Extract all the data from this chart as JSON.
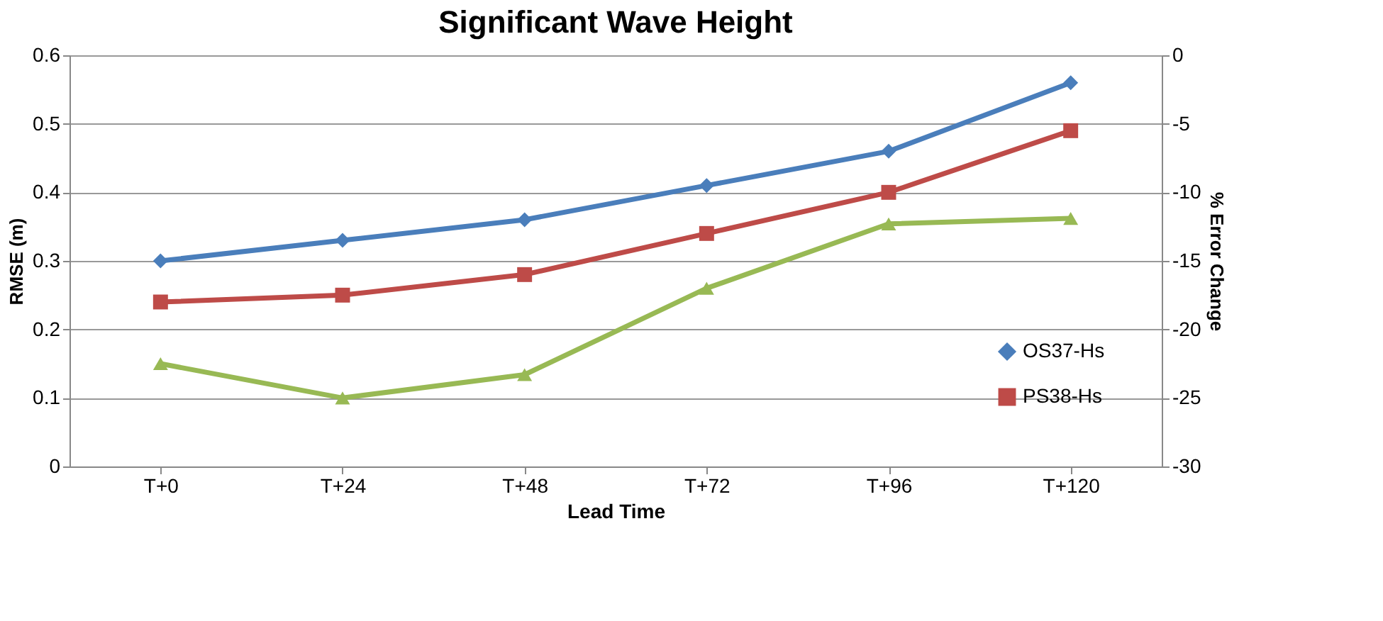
{
  "chart_data": {
    "type": "line",
    "title": "Significant Wave Height",
    "xlabel": "Lead Time",
    "ylabel": "RMSE (m)",
    "y2label": "% Error Change",
    "categories": [
      "T+0",
      "T+24",
      "T+48",
      "T+72",
      "T+96",
      "T+120"
    ],
    "series": [
      {
        "name": "OS37-Hs",
        "color": "#4a7ebb",
        "marker": "diamond",
        "values": [
          0.3,
          0.33,
          0.36,
          0.41,
          0.46,
          0.56
        ]
      },
      {
        "name": "PS38-Hs",
        "color": "#be4b48",
        "marker": "square",
        "values": [
          0.24,
          0.25,
          0.28,
          0.34,
          0.4,
          0.49
        ]
      },
      {
        "color": "#98b954",
        "marker": "triangle",
        "axis": "y2",
        "values": [
          -22.5,
          -25.0,
          -23.3,
          -17.0,
          -12.3,
          -11.9
        ]
      }
    ],
    "ylim": [
      0,
      0.6
    ],
    "yticks": [
      0,
      0.1,
      0.2,
      0.3,
      0.4,
      0.5,
      0.6
    ],
    "y2lim": [
      -30,
      0
    ],
    "y2ticks": [
      -30,
      -25,
      -20,
      -15,
      -10,
      -5,
      0
    ],
    "grid": "y",
    "legend": "bottom right"
  }
}
